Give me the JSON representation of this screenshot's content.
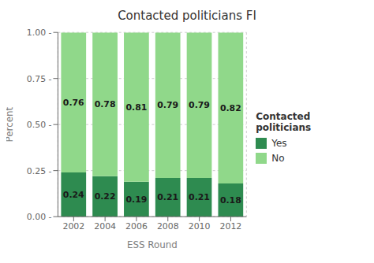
{
  "chart_data": {
    "type": "bar",
    "stacked": true,
    "title": "Contacted politicians FI",
    "xlabel": "ESS Round",
    "ylabel": "Percent",
    "categories": [
      "2002",
      "2004",
      "2006",
      "2008",
      "2010",
      "2012"
    ],
    "series": [
      {
        "name": "Yes",
        "color": "#2e8b50",
        "values": [
          0.24,
          0.22,
          0.19,
          0.21,
          0.21,
          0.18
        ]
      },
      {
        "name": "No",
        "color": "#90d88a",
        "values": [
          0.76,
          0.78,
          0.81,
          0.79,
          0.79,
          0.82
        ]
      }
    ],
    "ylim": [
      0,
      1.0
    ],
    "yticks": [
      {
        "value": 0.0,
        "label": "0.00 -"
      },
      {
        "value": 0.25,
        "label": "0.25 -"
      },
      {
        "value": 0.5,
        "label": "0.50 -"
      },
      {
        "value": 0.75,
        "label": "0.75 -"
      },
      {
        "value": 1.0,
        "label": "1.00 -"
      }
    ],
    "grid": true,
    "data_labels": true,
    "legend": "right",
    "legend_title": "Contacted politicians"
  }
}
